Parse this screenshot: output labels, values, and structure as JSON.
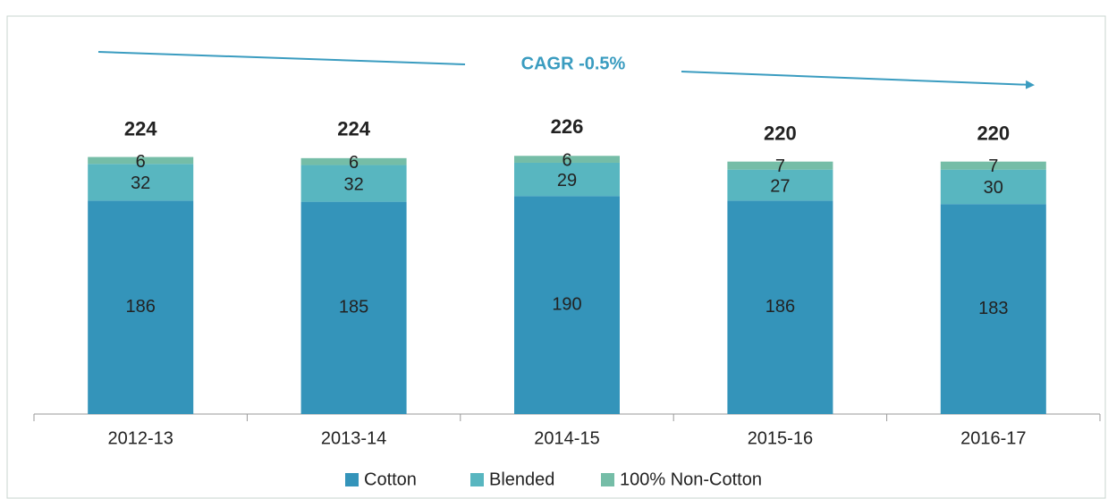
{
  "chart_data": {
    "type": "stacked_bar",
    "annotation": "CAGR -0.5%",
    "categories": [
      "2012-13",
      "2013-14",
      "2014-15",
      "2015-16",
      "2016-17"
    ],
    "series": [
      {
        "name": "Cotton",
        "color": "#3494ba",
        "values": [
          186,
          185,
          190,
          186,
          183
        ]
      },
      {
        "name": "Blended",
        "color": "#58b6c0",
        "values": [
          32,
          32,
          29,
          27,
          30
        ]
      },
      {
        "name": "100% Non-Cotton",
        "color": "#75bda7",
        "values": [
          6,
          6,
          6,
          7,
          7
        ]
      }
    ],
    "totals": [
      224,
      224,
      226,
      220,
      220
    ]
  }
}
